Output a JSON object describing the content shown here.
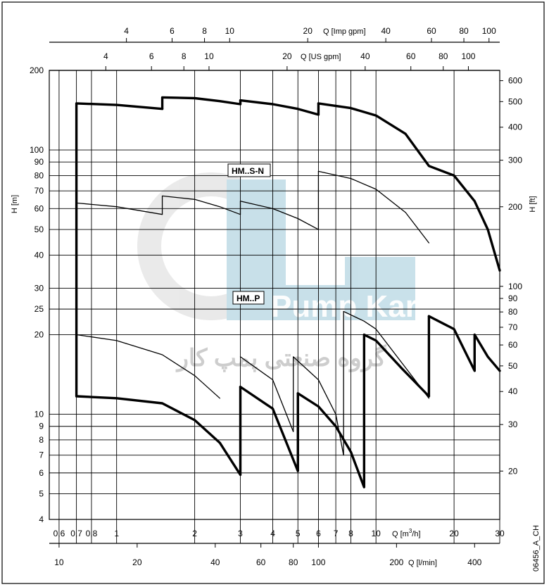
{
  "chart_data": {
    "type": "line",
    "scale": "log-log",
    "grid": true,
    "bottom_axis": {
      "title": "Q [m³/h]",
      "range": [
        0.55,
        30
      ],
      "ticks": [
        {
          "v": 0.6,
          "t": "0,6"
        },
        {
          "v": 0.7,
          "t": "0,7"
        },
        {
          "v": 0.8,
          "t": "0,8"
        },
        {
          "v": 1,
          "t": "1"
        },
        {
          "v": 2,
          "t": "2"
        },
        {
          "v": 3,
          "t": "3"
        },
        {
          "v": 4,
          "t": "4"
        },
        {
          "v": 5,
          "t": "5"
        },
        {
          "v": 6,
          "t": "6"
        },
        {
          "v": 7,
          "t": "7"
        },
        {
          "v": 8,
          "t": "8"
        },
        {
          "v": 10,
          "t": "10"
        },
        {
          "v": 20,
          "t": "20"
        },
        {
          "v": 30,
          "t": "30"
        }
      ]
    },
    "bottom_axis_2": {
      "title": "Q [l/min]",
      "ticks": [
        {
          "v": 10,
          "t": "10"
        },
        {
          "v": 20,
          "t": "20"
        },
        {
          "v": 40,
          "t": "40"
        },
        {
          "v": 60,
          "t": "60"
        },
        {
          "v": 80,
          "t": "80"
        },
        {
          "v": 100,
          "t": "100"
        },
        {
          "v": 200,
          "t": "200"
        },
        {
          "v": 400,
          "t": "400"
        }
      ]
    },
    "top_axis_us": {
      "title": "Q [US gpm]",
      "ticks": [
        {
          "v": 4,
          "t": "4"
        },
        {
          "v": 6,
          "t": "6"
        },
        {
          "v": 8,
          "t": "8"
        },
        {
          "v": 10,
          "t": "10"
        },
        {
          "v": 20,
          "t": "20"
        },
        {
          "v": 40,
          "t": "40"
        },
        {
          "v": 60,
          "t": "60"
        },
        {
          "v": 80,
          "t": "80"
        },
        {
          "v": 100,
          "t": "100"
        }
      ]
    },
    "top_axis_imp": {
      "title": "Q [Imp gpm]",
      "ticks": [
        {
          "v": 4,
          "t": "4"
        },
        {
          "v": 6,
          "t": "6"
        },
        {
          "v": 8,
          "t": "8"
        },
        {
          "v": 10,
          "t": "10"
        },
        {
          "v": 20,
          "t": "20"
        },
        {
          "v": 40,
          "t": "40"
        },
        {
          "v": 60,
          "t": "60"
        },
        {
          "v": 80,
          "t": "80"
        },
        {
          "v": 100,
          "t": "100"
        }
      ]
    },
    "left_axis": {
      "title": "H [m]",
      "range": [
        4,
        200
      ],
      "ticks": [
        {
          "v": 4,
          "t": "4"
        },
        {
          "v": 5,
          "t": "5"
        },
        {
          "v": 6,
          "t": "6"
        },
        {
          "v": 7,
          "t": "7"
        },
        {
          "v": 8,
          "t": "8"
        },
        {
          "v": 9,
          "t": "9"
        },
        {
          "v": 10,
          "t": "10"
        },
        {
          "v": 20,
          "t": "20"
        },
        {
          "v": 25,
          "t": "25"
        },
        {
          "v": 30,
          "t": "30"
        },
        {
          "v": 40,
          "t": "40"
        },
        {
          "v": 50,
          "t": "50"
        },
        {
          "v": 60,
          "t": "60"
        },
        {
          "v": 70,
          "t": "70"
        },
        {
          "v": 80,
          "t": "80"
        },
        {
          "v": 90,
          "t": "90"
        },
        {
          "v": 100,
          "t": "100"
        },
        {
          "v": 200,
          "t": "200"
        }
      ]
    },
    "right_axis": {
      "title": "H [ft]",
      "ticks": [
        {
          "v": 20,
          "t": "20"
        },
        {
          "v": 30,
          "t": "30"
        },
        {
          "v": 40,
          "t": "40"
        },
        {
          "v": 50,
          "t": "50"
        },
        {
          "v": 60,
          "t": "60"
        },
        {
          "v": 70,
          "t": "70"
        },
        {
          "v": 80,
          "t": "80"
        },
        {
          "v": 90,
          "t": "90"
        },
        {
          "v": 100,
          "t": "100"
        },
        {
          "v": 200,
          "t": "200"
        },
        {
          "v": 300,
          "t": "300"
        },
        {
          "v": 400,
          "t": "400"
        },
        {
          "v": 500,
          "t": "500"
        },
        {
          "v": 600,
          "t": "600"
        }
      ]
    },
    "series": [
      {
        "name": "HM..S-N",
        "weight": "thin",
        "segments": [
          [
            [
              0.7,
              63
            ],
            [
              1.0,
              61
            ],
            [
              1.5,
              57
            ]
          ],
          [
            [
              1.5,
              67
            ],
            [
              2.0,
              65
            ],
            [
              2.5,
              61
            ],
            [
              3.0,
              57
            ]
          ],
          [
            [
              3.0,
              64
            ],
            [
              4.0,
              60
            ],
            [
              5.0,
              55
            ],
            [
              6.0,
              50
            ]
          ],
          [
            [
              6.0,
              83
            ],
            [
              8.0,
              78
            ],
            [
              10.0,
              71
            ],
            [
              13.0,
              58
            ],
            [
              16.0,
              44.5
            ]
          ],
          [
            [
              0.7,
              20
            ],
            [
              1.0,
              19
            ],
            [
              1.5,
              16.8
            ],
            [
              2.0,
              14
            ],
            [
              2.5,
              11.5
            ]
          ],
          [
            [
              3.0,
              16.5
            ],
            [
              4.0,
              13.5
            ],
            [
              4.8,
              8.6
            ]
          ],
          [
            [
              4.8,
              16.5
            ],
            [
              6.0,
              13.5
            ],
            [
              7.0,
              10
            ],
            [
              7.5,
              7
            ]
          ],
          [
            [
              7.5,
              24.5
            ],
            [
              9.0,
              22.5
            ],
            [
              10.0,
              21
            ],
            [
              13.0,
              15
            ],
            [
              16.0,
              11.5
            ]
          ]
        ]
      },
      {
        "name": "HM..P",
        "weight": "thick",
        "segments": [
          [
            [
              0.7,
              150
            ],
            [
              1.0,
              148
            ],
            [
              1.5,
              143
            ]
          ],
          [
            [
              1.5,
              158
            ],
            [
              2.0,
              157
            ],
            [
              2.5,
              153
            ],
            [
              3.0,
              149
            ]
          ],
          [
            [
              3.0,
              154
            ],
            [
              4.0,
              149
            ],
            [
              5.0,
              143
            ],
            [
              6.0,
              136
            ]
          ],
          [
            [
              6.0,
              150
            ],
            [
              8.0,
              144
            ],
            [
              10.0,
              135
            ],
            [
              13.0,
              115
            ],
            [
              16.0,
              87
            ],
            [
              20.0,
              80
            ],
            [
              24.0,
              64
            ],
            [
              27.0,
              50
            ],
            [
              30.0,
              35
            ]
          ],
          [
            [
              0.7,
              11.7
            ],
            [
              1.0,
              11.5
            ],
            [
              1.5,
              11.0
            ],
            [
              2.0,
              9.5
            ],
            [
              2.5,
              7.8
            ],
            [
              3.0,
              5.9
            ]
          ],
          [
            [
              3.0,
              12.7
            ],
            [
              4.0,
              10.5
            ],
            [
              5.0,
              6.1
            ]
          ],
          [
            [
              5.0,
              12
            ],
            [
              6.0,
              10.7
            ],
            [
              7.0,
              9.0
            ],
            [
              8.0,
              7.2
            ],
            [
              9.0,
              5.3
            ]
          ],
          [
            [
              9.0,
              20
            ],
            [
              10.0,
              19
            ],
            [
              12.5,
              15
            ],
            [
              16.0,
              11.7
            ]
          ],
          [
            [
              16.0,
              23.5
            ],
            [
              20.0,
              21
            ],
            [
              24.0,
              14.6
            ]
          ],
          [
            [
              24.0,
              20
            ],
            [
              27.0,
              16.5
            ],
            [
              30.0,
              14.6
            ]
          ]
        ]
      }
    ]
  },
  "page": {
    "diagram_code": "06456_A_CH",
    "watermark_latin": "Pump  Kar",
    "watermark_persian": "گروه صنعتی پمپ کار"
  },
  "colors": {
    "line": "#000000",
    "watermark_blue": "#9cc8d8",
    "watermark_grey": "#dcdcdc"
  }
}
